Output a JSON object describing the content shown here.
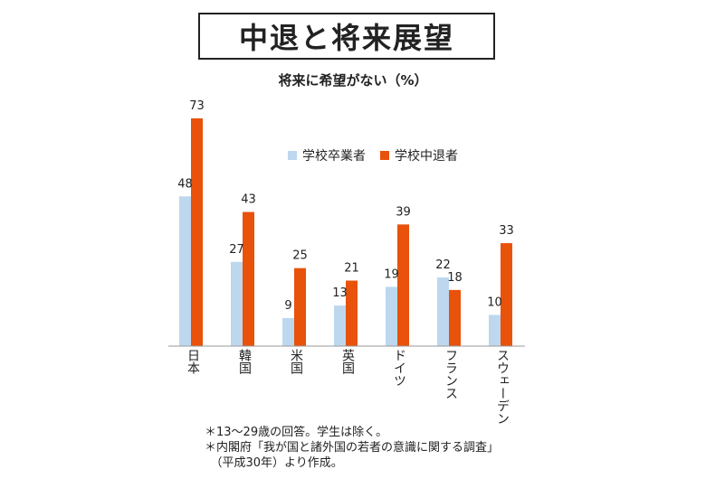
{
  "header": {
    "title": "中退と将来展望"
  },
  "chart_data": {
    "type": "bar",
    "title": "将来に希望がない（%）",
    "categories": [
      "日本",
      "韓国",
      "米国",
      "英国",
      "ドイツ",
      "フランス",
      "スウェーデン"
    ],
    "series": [
      {
        "name": "学校卒業者",
        "color": "#bdd7ee",
        "values": [
          48,
          27,
          9,
          13,
          19,
          22,
          10
        ]
      },
      {
        "name": "学校中退者",
        "color": "#e8520a",
        "values": [
          73,
          43,
          25,
          21,
          39,
          18,
          33
        ]
      }
    ],
    "ylim": [
      0,
      73
    ],
    "grid": false,
    "legend": "top-right"
  },
  "notes": [
    "＊13〜29歳の回答。学生は除く。",
    "＊内閣府「我が国と諸外国の若者の意識に関する調査」",
    "　（平成30年）より作成。"
  ]
}
